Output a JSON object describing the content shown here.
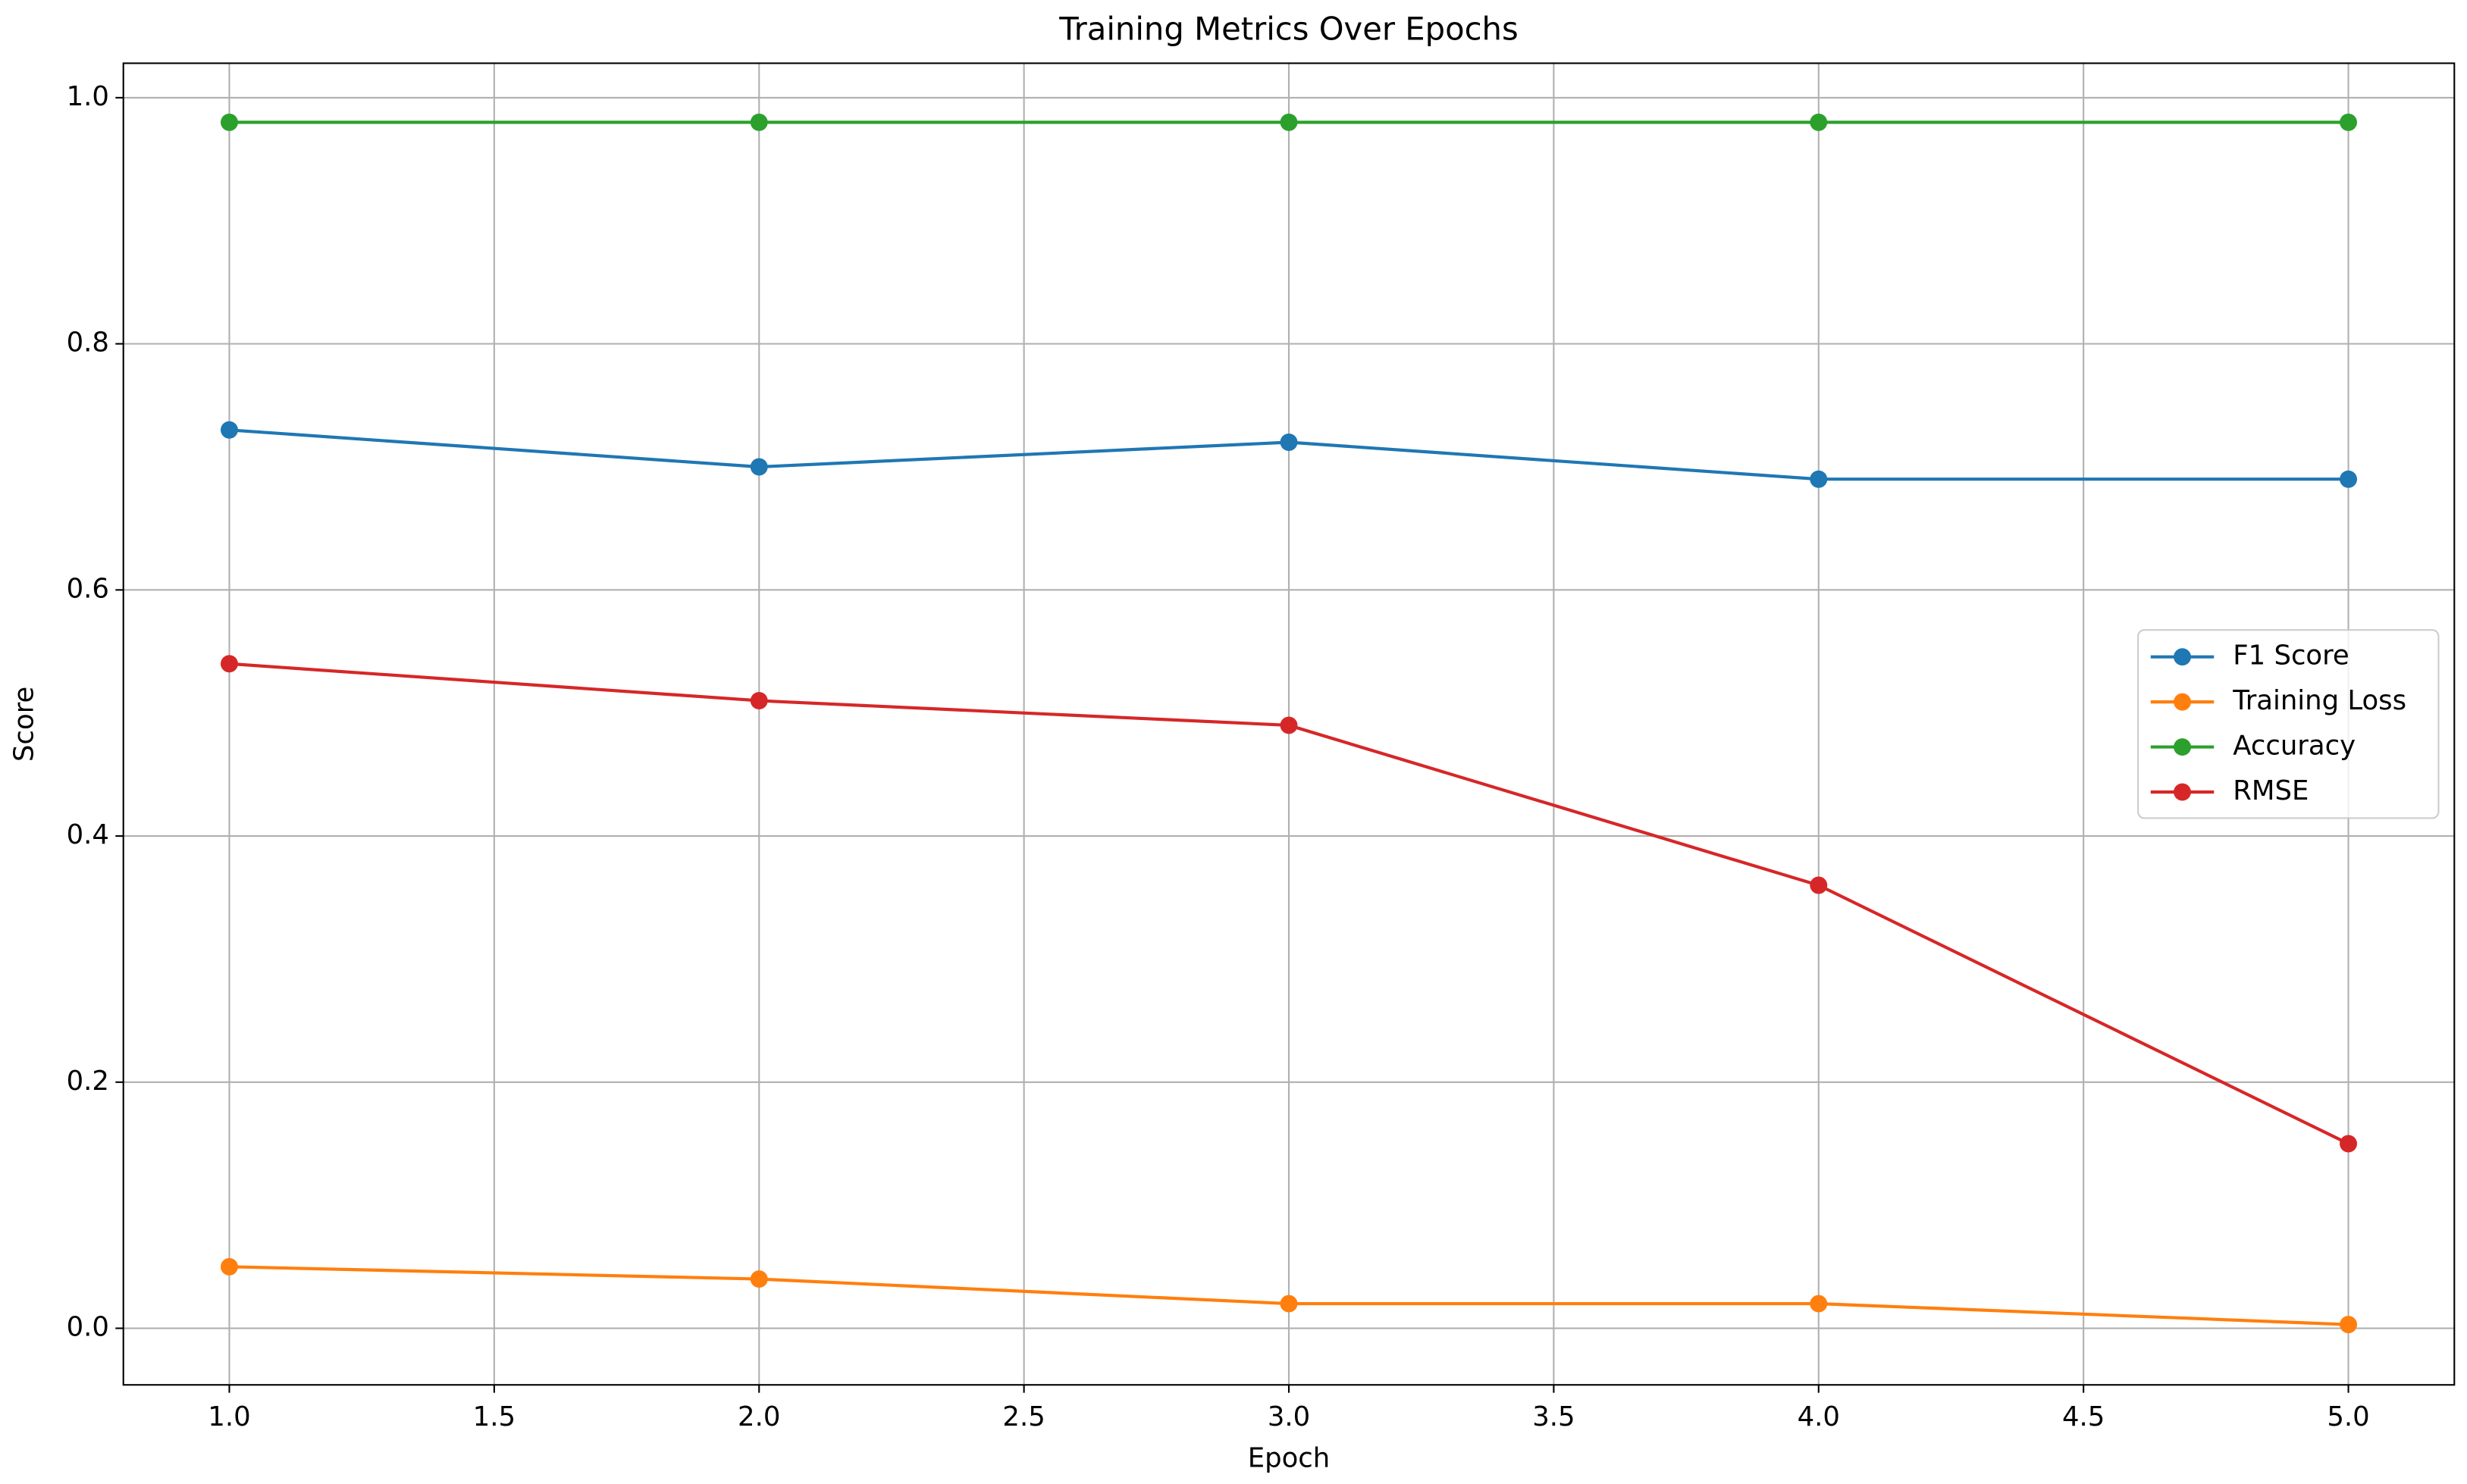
{
  "chart_data": {
    "type": "line",
    "title": "Training Metrics Over Epochs",
    "x_label": "Epoch",
    "y_label": "Score",
    "x": [
      1,
      2,
      3,
      4,
      5
    ],
    "series": [
      {
        "name": "F1 Score",
        "color": "#1f77b4",
        "values": [
          0.73,
          0.7,
          0.72,
          0.69,
          0.69
        ]
      },
      {
        "name": "Training Loss",
        "color": "#ff7f0e",
        "values": [
          0.05,
          0.04,
          0.02,
          0.02,
          0.003
        ]
      },
      {
        "name": "Accuracy",
        "color": "#2ca02c",
        "values": [
          0.98,
          0.98,
          0.98,
          0.98,
          0.98
        ]
      },
      {
        "name": "RMSE",
        "color": "#d62728",
        "values": [
          0.54,
          0.51,
          0.49,
          0.36,
          0.15
        ]
      }
    ],
    "xlim": [
      0.8,
      5.2
    ],
    "xticks": [
      {
        "value": 1,
        "label": "1.0"
      },
      1.5,
      {
        "value": 2,
        "label": "2.0"
      },
      2.5,
      {
        "value": 3,
        "label": "3.0"
      },
      3.5,
      {
        "value": 4,
        "label": "4.0"
      },
      4.5,
      {
        "value": 5,
        "label": "5.0"
      }
    ],
    "ylim": [
      -0.046,
      1.028
    ],
    "yticks": [
      {
        "value": 0,
        "label": "0.0"
      },
      0.2,
      0.4,
      0.6,
      0.8,
      {
        "value": 1,
        "label": "1.0"
      }
    ],
    "grid": true,
    "legend": "center right"
  }
}
